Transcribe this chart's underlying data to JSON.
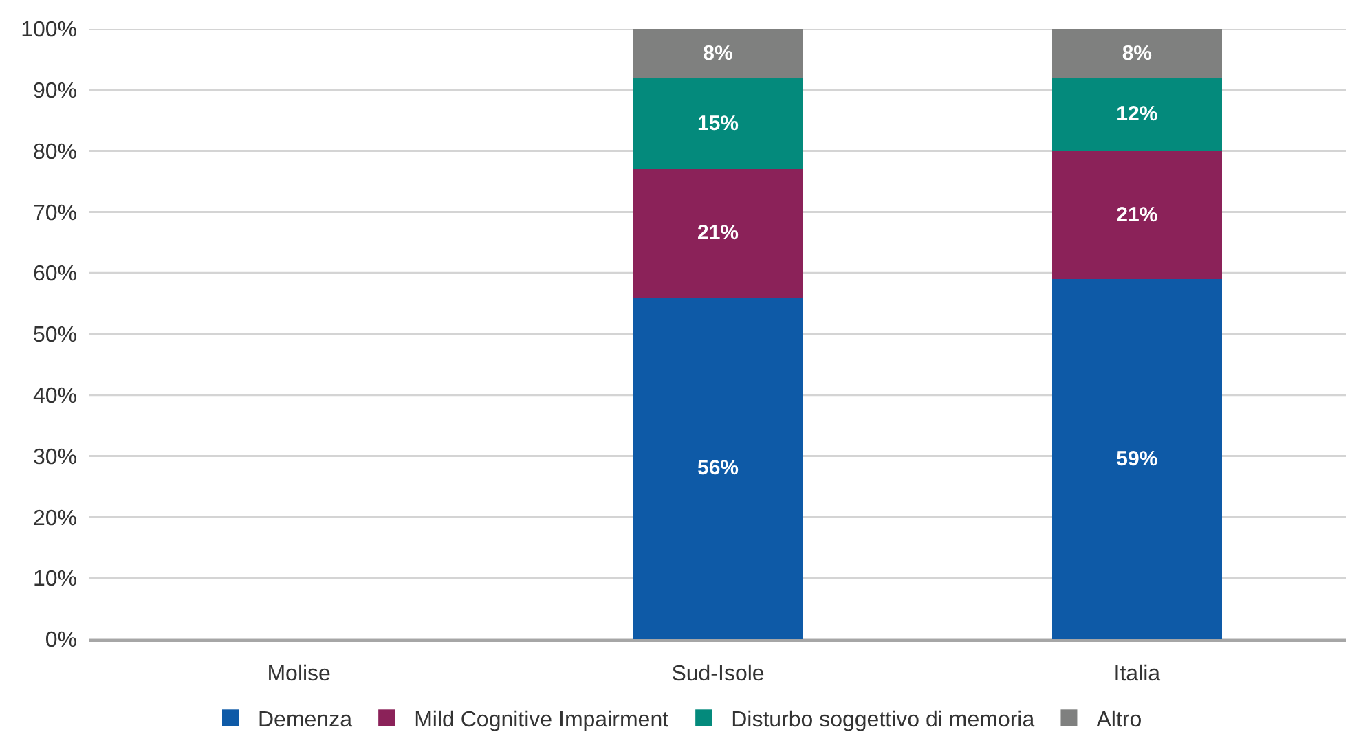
{
  "chart_data": {
    "type": "bar",
    "stacked": true,
    "categories": [
      "Molise",
      "Sud-Isole",
      "Italia"
    ],
    "series": [
      {
        "name": "Demenza",
        "color": "#0e5aa7",
        "values": [
          null,
          56,
          59
        ],
        "value_labels": [
          null,
          "56%",
          "59%"
        ]
      },
      {
        "name": "Mild Cognitive Impairment",
        "color": "#8b2259",
        "values": [
          null,
          21,
          21
        ],
        "value_labels": [
          null,
          "21%",
          "21%"
        ]
      },
      {
        "name": "Disturbo soggettivo di memoria",
        "color": "#048a7c",
        "values": [
          null,
          15,
          12
        ],
        "value_labels": [
          null,
          "15%",
          "12%"
        ]
      },
      {
        "name": "Altro",
        "color": "#7f807f",
        "values": [
          null,
          8,
          8
        ],
        "value_labels": [
          null,
          "8%",
          "8%"
        ]
      }
    ],
    "ylim": [
      0,
      100
    ],
    "yticks": [
      {
        "value": 0,
        "label": "0%"
      },
      {
        "value": 10,
        "label": "10%"
      },
      {
        "value": 20,
        "label": "20%"
      },
      {
        "value": 30,
        "label": "30%"
      },
      {
        "value": 40,
        "label": "40%"
      },
      {
        "value": 50,
        "label": "50%"
      },
      {
        "value": 60,
        "label": "60%"
      },
      {
        "value": 70,
        "label": "70%"
      },
      {
        "value": 80,
        "label": "80%"
      },
      {
        "value": 90,
        "label": "90%"
      },
      {
        "value": 100,
        "label": "100%"
      }
    ],
    "grid": "y",
    "legend": "bottom"
  }
}
